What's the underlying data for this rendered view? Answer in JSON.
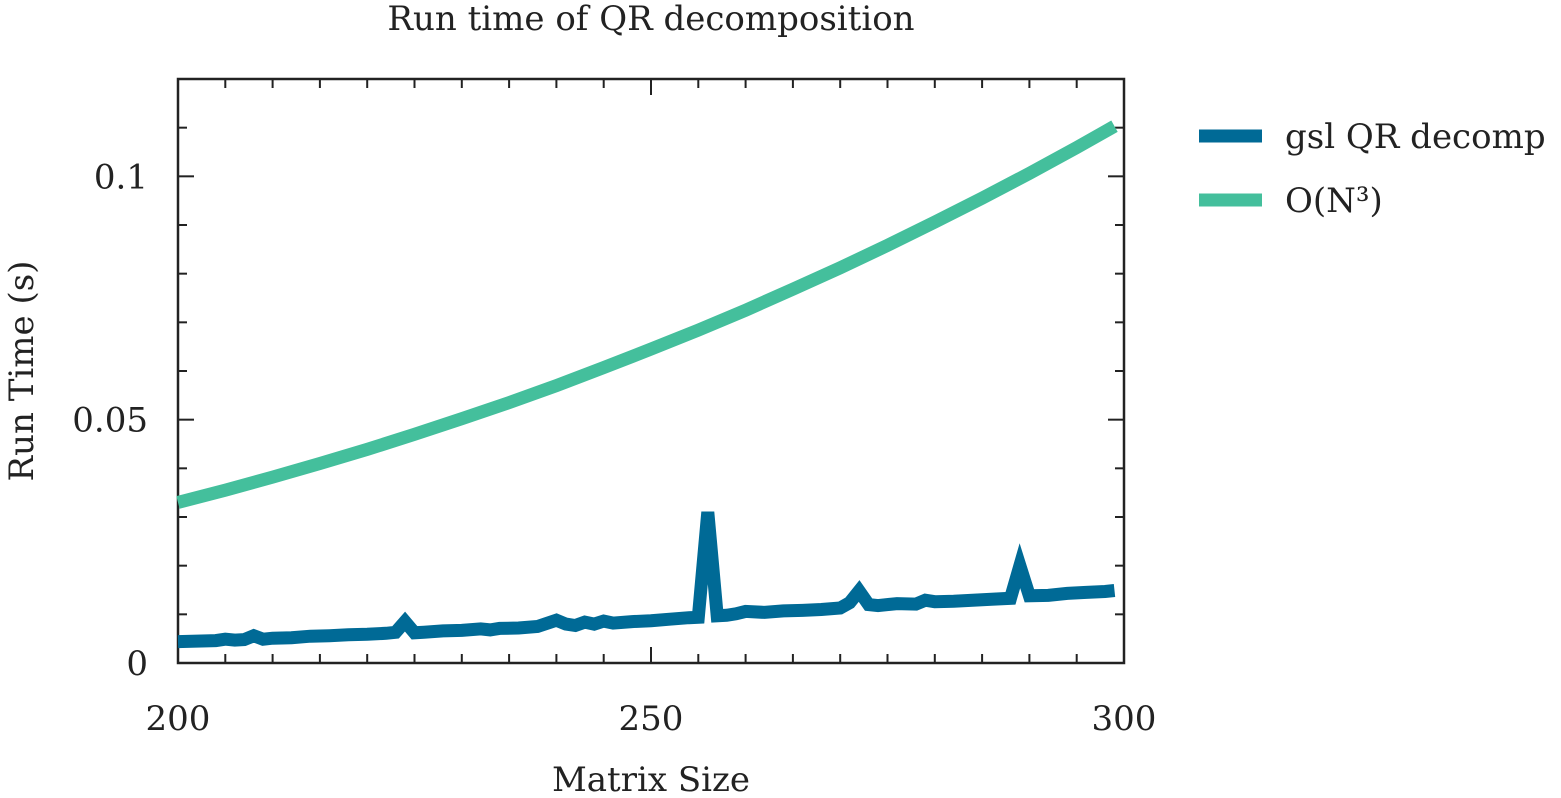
{
  "chart_data": {
    "type": "line",
    "title": "Run time of QR decomposition",
    "xlabel": "Matrix Size",
    "ylabel": "Run Time (s)",
    "xlim": [
      200,
      300
    ],
    "ylim": [
      0,
      0.12
    ],
    "x_ticks": [
      200,
      250,
      300
    ],
    "x_tick_labels": [
      "200",
      "250",
      "300"
    ],
    "y_ticks": [
      0,
      0.05,
      0.1
    ],
    "y_tick_labels": [
      "0",
      "0.05",
      "0.1"
    ],
    "grid": false,
    "legend_position": "outside-right",
    "series": [
      {
        "name": "gsl QR decomp",
        "color": "#006a96",
        "x": [
          200,
          202,
          204,
          205,
          206,
          207,
          208,
          209,
          210,
          212,
          214,
          216,
          218,
          220,
          222,
          223,
          224,
          225,
          226,
          228,
          230,
          232,
          233,
          234,
          236,
          238,
          240,
          241,
          242,
          243,
          244,
          245,
          246,
          248,
          250,
          252,
          254,
          255,
          256,
          257,
          258,
          259,
          260,
          262,
          264,
          266,
          268,
          270,
          271,
          272,
          273,
          274,
          276,
          278,
          279,
          280,
          282,
          284,
          286,
          288,
          289,
          290,
          292,
          294,
          296,
          298,
          299
        ],
        "y": [
          0.0044,
          0.0045,
          0.0046,
          0.0049,
          0.0047,
          0.0048,
          0.0056,
          0.0049,
          0.0051,
          0.0052,
          0.0055,
          0.0056,
          0.0058,
          0.0059,
          0.0061,
          0.0063,
          0.0085,
          0.0062,
          0.0063,
          0.0066,
          0.0067,
          0.007,
          0.0068,
          0.0071,
          0.0072,
          0.0075,
          0.0088,
          0.008,
          0.0077,
          0.0084,
          0.008,
          0.0086,
          0.0082,
          0.0085,
          0.0087,
          0.009,
          0.0093,
          0.0094,
          0.031,
          0.0097,
          0.0098,
          0.0101,
          0.0106,
          0.0104,
          0.0107,
          0.0108,
          0.011,
          0.0113,
          0.0124,
          0.0148,
          0.012,
          0.0118,
          0.0122,
          0.0121,
          0.0129,
          0.0126,
          0.0127,
          0.0129,
          0.0131,
          0.0133,
          0.02,
          0.0138,
          0.0139,
          0.0143,
          0.0145,
          0.0147,
          0.0149
        ]
      },
      {
        "name": "O(N³)",
        "color": "#44bf9c",
        "formula": "0.033 * (N/200)^3",
        "x": [
          200,
          205,
          210,
          215,
          220,
          225,
          230,
          235,
          240,
          245,
          250,
          255,
          260,
          265,
          270,
          275,
          280,
          285,
          290,
          295,
          299
        ],
        "y": [
          0.033,
          0.0355,
          0.0382,
          0.041,
          0.0439,
          0.047,
          0.0502,
          0.0535,
          0.057,
          0.0607,
          0.0645,
          0.0684,
          0.0725,
          0.0768,
          0.0812,
          0.0858,
          0.0906,
          0.0955,
          0.1006,
          0.1059,
          0.1103
        ]
      }
    ]
  }
}
